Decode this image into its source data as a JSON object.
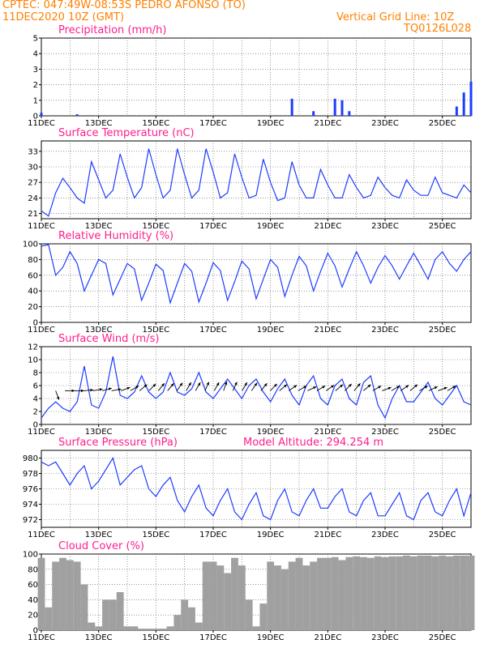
{
  "header": {
    "line1": "CPTEC:   047:49W-08:53S  PEDRO AFONSO (TO)",
    "line2": "11DEC2020 10Z (GMT)",
    "grid_note": "Vertical Grid Line: 10Z",
    "code": "TQ0126L028"
  },
  "colors": {
    "series": "#1e3cff",
    "title": "#ff1e8c",
    "header": "#ff8000",
    "cloud": "#a0a0a0",
    "arrow": "#000000"
  },
  "chart_data": [
    {
      "id": "precip",
      "type": "bar",
      "title": "Precipitation (mm/h)",
      "ylim": [
        0,
        5
      ],
      "yticks": [
        0,
        1,
        2,
        3,
        4,
        5
      ],
      "xticks": [
        "11DEC",
        "13DEC",
        "15DEC",
        "17DEC",
        "19DEC",
        "21DEC",
        "23DEC",
        "25DEC"
      ],
      "x_day_offsets": [
        0.0,
        0.25,
        0.5,
        0.75,
        1.0,
        1.25,
        1.5,
        1.75,
        2.0,
        2.25,
        2.5,
        2.75,
        3.0,
        3.25,
        3.5,
        3.75,
        4.0,
        4.25,
        4.5,
        4.75,
        5.0,
        5.25,
        5.5,
        5.75,
        6.0,
        6.25,
        6.5,
        6.75,
        7.0,
        7.25,
        7.5,
        7.75,
        8.0,
        8.25,
        8.5,
        8.75,
        9.0,
        9.25,
        9.5,
        9.75,
        10.0,
        10.25,
        10.5,
        10.75,
        11.0,
        11.25,
        11.5,
        11.75,
        12.0,
        12.25,
        12.5,
        12.75,
        13.0,
        13.25,
        13.5,
        13.75,
        14.0,
        14.25,
        14.5,
        14.75,
        15.0
      ],
      "x_start": "11DEC2020 10Z",
      "values": [
        0.2,
        0.0,
        0.0,
        0.0,
        0.0,
        0.1,
        0.0,
        0.0,
        0.0,
        0.0,
        0.0,
        0.0,
        0.0,
        0.0,
        0.0,
        0.0,
        0.0,
        0.0,
        0.0,
        0.0,
        0.0,
        0.0,
        0.0,
        0.0,
        0.0,
        0.0,
        0.0,
        0.0,
        0.0,
        0.0,
        0.0,
        0.0,
        0.0,
        0.0,
        0.0,
        1.1,
        0.0,
        0.0,
        0.3,
        0.0,
        0.0,
        1.1,
        1.0,
        0.3,
        0.0,
        0.0,
        0.0,
        0.0,
        0.0,
        0.0,
        0.0,
        0.0,
        0.0,
        0.0,
        0.0,
        0.0,
        0.0,
        0.0,
        0.6,
        1.5,
        2.2
      ]
    },
    {
      "id": "temp",
      "type": "line",
      "title": "Surface Temperature (nC)",
      "ylim": [
        20,
        35
      ],
      "yticks": [
        21,
        24,
        27,
        30,
        33
      ],
      "xticks": [
        "11DEC",
        "13DEC",
        "15DEC",
        "17DEC",
        "19DEC",
        "21DEC",
        "23DEC",
        "25DEC"
      ],
      "x_start": "11DEC2020 10Z",
      "x_day_offsets": [
        0.0,
        0.25,
        0.5,
        0.75,
        1.0,
        1.25,
        1.5,
        1.75,
        2.0,
        2.25,
        2.5,
        2.75,
        3.0,
        3.25,
        3.5,
        3.75,
        4.0,
        4.25,
        4.5,
        4.75,
        5.0,
        5.25,
        5.5,
        5.75,
        6.0,
        6.25,
        6.5,
        6.75,
        7.0,
        7.25,
        7.5,
        7.75,
        8.0,
        8.25,
        8.5,
        8.75,
        9.0,
        9.25,
        9.5,
        9.75,
        10.0,
        10.25,
        10.5,
        10.75,
        11.0,
        11.25,
        11.5,
        11.75,
        12.0,
        12.25,
        12.5,
        12.75,
        13.0,
        13.25,
        13.5,
        13.75,
        14.0,
        14.25,
        14.5,
        14.75,
        15.0
      ],
      "values": [
        21.5,
        20.5,
        25.0,
        27.8,
        26.0,
        24.0,
        23.0,
        31.0,
        27.5,
        24.0,
        25.5,
        32.5,
        28.0,
        24.0,
        26.0,
        33.5,
        28.5,
        24.0,
        25.5,
        33.5,
        28.5,
        24.0,
        25.5,
        33.5,
        29.0,
        24.0,
        25.0,
        32.5,
        28.0,
        24.0,
        24.5,
        31.5,
        27.0,
        23.5,
        24.0,
        31.0,
        26.5,
        24.0,
        24.0,
        29.5,
        26.5,
        24.0,
        24.0,
        28.5,
        26.0,
        24.0,
        24.5,
        28.0,
        26.0,
        24.5,
        24.0,
        27.5,
        25.5,
        24.5,
        24.5,
        28.0,
        25.0,
        24.5,
        24.0,
        26.5,
        25.0
      ]
    },
    {
      "id": "rh",
      "type": "line",
      "title": "Relative Humidity (%)",
      "ylim": [
        0,
        100
      ],
      "yticks": [
        0,
        20,
        40,
        60,
        80,
        100
      ],
      "xticks": [
        "11DEC",
        "13DEC",
        "15DEC",
        "17DEC",
        "19DEC",
        "21DEC",
        "23DEC",
        "25DEC"
      ],
      "x_start": "11DEC2020 10Z",
      "x_day_offsets": [
        0.0,
        0.25,
        0.5,
        0.75,
        1.0,
        1.25,
        1.5,
        1.75,
        2.0,
        2.25,
        2.5,
        2.75,
        3.0,
        3.25,
        3.5,
        3.75,
        4.0,
        4.25,
        4.5,
        4.75,
        5.0,
        5.25,
        5.5,
        5.75,
        6.0,
        6.25,
        6.5,
        6.75,
        7.0,
        7.25,
        7.5,
        7.75,
        8.0,
        8.25,
        8.5,
        8.75,
        9.0,
        9.25,
        9.5,
        9.75,
        10.0,
        10.25,
        10.5,
        10.75,
        11.0,
        11.25,
        11.5,
        11.75,
        12.0,
        12.25,
        12.5,
        12.75,
        13.0,
        13.25,
        13.5,
        13.75,
        14.0,
        14.25,
        14.5,
        14.75,
        15.0
      ],
      "values": [
        97,
        99,
        60,
        70,
        90,
        75,
        40,
        60,
        80,
        75,
        35,
        55,
        75,
        68,
        28,
        50,
        74,
        66,
        25,
        50,
        75,
        65,
        26,
        50,
        76,
        66,
        28,
        52,
        78,
        68,
        30,
        55,
        80,
        70,
        33,
        60,
        84,
        72,
        40,
        65,
        88,
        72,
        45,
        68,
        90,
        72,
        50,
        70,
        85,
        72,
        55,
        72,
        88,
        72,
        55,
        80,
        90,
        75,
        65,
        80,
        90
      ]
    },
    {
      "id": "wind",
      "type": "line",
      "title": "Surface Wind (m/s)",
      "ylim": [
        0,
        12
      ],
      "yticks": [
        0,
        2,
        4,
        6,
        8,
        10,
        12
      ],
      "xticks": [
        "11DEC",
        "13DEC",
        "15DEC",
        "17DEC",
        "19DEC",
        "21DEC",
        "23DEC",
        "25DEC"
      ],
      "x_start": "11DEC2020 10Z",
      "x_day_offsets": [
        0.0,
        0.25,
        0.5,
        0.75,
        1.0,
        1.25,
        1.5,
        1.75,
        2.0,
        2.25,
        2.5,
        2.75,
        3.0,
        3.25,
        3.5,
        3.75,
        4.0,
        4.25,
        4.5,
        4.75,
        5.0,
        5.25,
        5.5,
        5.75,
        6.0,
        6.25,
        6.5,
        6.75,
        7.0,
        7.25,
        7.5,
        7.75,
        8.0,
        8.25,
        8.5,
        8.75,
        9.0,
        9.25,
        9.5,
        9.75,
        10.0,
        10.25,
        10.5,
        10.75,
        11.0,
        11.25,
        11.5,
        11.75,
        12.0,
        12.25,
        12.5,
        12.75,
        13.0,
        13.25,
        13.5,
        13.75,
        14.0,
        14.25,
        14.5,
        14.75,
        15.0
      ],
      "values": [
        1.0,
        2.5,
        3.5,
        2.5,
        2.0,
        3.5,
        9.0,
        3.0,
        2.5,
        5.0,
        10.5,
        4.5,
        4.0,
        5.0,
        7.5,
        5.0,
        4.0,
        5.0,
        8.0,
        5.0,
        4.5,
        5.5,
        8.0,
        5.0,
        4.0,
        5.5,
        7.0,
        5.5,
        4.0,
        6.0,
        7.0,
        5.0,
        3.5,
        5.5,
        7.0,
        4.5,
        3.0,
        6.0,
        7.5,
        4.0,
        3.0,
        6.0,
        7.0,
        4.0,
        3.0,
        6.5,
        7.5,
        3.0,
        1.0,
        4.0,
        6.0,
        3.5,
        3.5,
        5.0,
        6.5,
        4.0,
        3.0,
        4.5,
        6.0,
        3.5,
        3.0
      ],
      "arrows_direction_deg": [
        160,
        90,
        90,
        85,
        80,
        75,
        80,
        70,
        60,
        50,
        45,
        40,
        40,
        35,
        30,
        30,
        25,
        30,
        20,
        25,
        30,
        35,
        40,
        45,
        50,
        55,
        60,
        65,
        60,
        55,
        50,
        45,
        40,
        50,
        60,
        70,
        60,
        55,
        50,
        60,
        65,
        70,
        60
      ]
    },
    {
      "id": "pressure",
      "type": "line",
      "title": "Surface Pressure (hPa)",
      "subtitle": "Model Altitude: 294.254 m",
      "ylim": [
        971,
        981
      ],
      "yticks": [
        972,
        974,
        976,
        978,
        980
      ],
      "xticks": [
        "11DEC",
        "13DEC",
        "15DEC",
        "17DEC",
        "19DEC",
        "21DEC",
        "23DEC",
        "25DEC"
      ],
      "x_start": "11DEC2020 10Z",
      "x_day_offsets": [
        0.0,
        0.25,
        0.5,
        0.75,
        1.0,
        1.25,
        1.5,
        1.75,
        2.0,
        2.25,
        2.5,
        2.75,
        3.0,
        3.25,
        3.5,
        3.75,
        4.0,
        4.25,
        4.5,
        4.75,
        5.0,
        5.25,
        5.5,
        5.75,
        6.0,
        6.25,
        6.5,
        6.75,
        7.0,
        7.25,
        7.5,
        7.75,
        8.0,
        8.25,
        8.5,
        8.75,
        9.0,
        9.25,
        9.5,
        9.75,
        10.0,
        10.25,
        10.5,
        10.75,
        11.0,
        11.25,
        11.5,
        11.75,
        12.0,
        12.25,
        12.5,
        12.75,
        13.0,
        13.25,
        13.5,
        13.75,
        14.0,
        14.25,
        14.5,
        14.75,
        15.0
      ],
      "values": [
        979.5,
        979.0,
        979.5,
        978.0,
        976.5,
        978.0,
        979.0,
        976.0,
        977.0,
        978.5,
        980.0,
        976.5,
        977.5,
        978.5,
        979.0,
        976.0,
        975.0,
        976.5,
        977.5,
        974.5,
        973.0,
        975.0,
        976.5,
        973.5,
        972.5,
        974.5,
        976.0,
        973.0,
        972.0,
        974.0,
        975.5,
        972.5,
        972.0,
        974.5,
        976.0,
        973.0,
        972.5,
        974.5,
        976.0,
        973.5,
        973.5,
        975.0,
        976.0,
        973.0,
        972.5,
        974.5,
        975.5,
        972.5,
        972.5,
        974.0,
        975.5,
        972.5,
        972.0,
        974.5,
        975.5,
        973.0,
        972.5,
        974.5,
        976.0,
        972.5,
        975.5
      ]
    },
    {
      "id": "cloud",
      "type": "area",
      "title": "Cloud Cover (%)",
      "ylim": [
        0,
        100
      ],
      "yticks": [
        0,
        20,
        40,
        60,
        80,
        100
      ],
      "xticks": [
        "11DEC",
        "13DEC",
        "15DEC",
        "17DEC",
        "19DEC",
        "21DEC",
        "23DEC",
        "25DEC"
      ],
      "x_start": "11DEC2020 10Z",
      "x_day_offsets": [
        0.0,
        0.25,
        0.5,
        0.75,
        1.0,
        1.25,
        1.5,
        1.75,
        2.0,
        2.25,
        2.5,
        2.75,
        3.0,
        3.25,
        3.5,
        3.75,
        4.0,
        4.25,
        4.5,
        4.75,
        5.0,
        5.25,
        5.5,
        5.75,
        6.0,
        6.25,
        6.5,
        6.75,
        7.0,
        7.25,
        7.5,
        7.75,
        8.0,
        8.25,
        8.5,
        8.75,
        9.0,
        9.25,
        9.5,
        9.75,
        10.0,
        10.25,
        10.5,
        10.75,
        11.0,
        11.25,
        11.5,
        11.75,
        12.0,
        12.25,
        12.5,
        12.75,
        13.0,
        13.25,
        13.5,
        13.75,
        14.0,
        14.25,
        14.5,
        14.75,
        15.0
      ],
      "values": [
        95,
        30,
        90,
        95,
        92,
        90,
        60,
        10,
        5,
        40,
        40,
        50,
        5,
        5,
        2,
        2,
        2,
        2,
        5,
        20,
        40,
        30,
        10,
        90,
        90,
        85,
        75,
        95,
        85,
        40,
        5,
        35,
        90,
        85,
        80,
        90,
        95,
        85,
        90,
        95,
        95,
        96,
        92,
        96,
        97,
        96,
        95,
        97,
        96,
        97,
        97,
        98,
        97,
        98,
        98,
        97,
        98,
        97,
        98,
        98,
        98
      ]
    }
  ]
}
